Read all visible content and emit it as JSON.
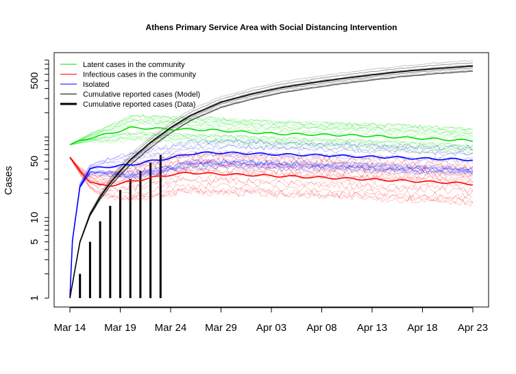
{
  "chart_data": {
    "type": "line",
    "title": "Athens Primary Service Area with Social Distancing Intervention",
    "xlabel": "",
    "ylabel": "Cases",
    "y_scale": "log",
    "ylim": [
      0.8,
      900
    ],
    "xlim": [
      "2020-03-14",
      "2020-04-23"
    ],
    "x_ticks": [
      "Mar 14",
      "Mar 19",
      "Mar 24",
      "Mar 29",
      "Apr 03",
      "Apr 08",
      "Apr 13",
      "Apr 18",
      "Apr 23"
    ],
    "y_ticks": [
      1,
      5,
      10,
      50,
      500
    ],
    "legend_position": "top-left",
    "colors": {
      "latent": "#00e000",
      "infectious": "#ff0000",
      "isolated": "#0000ff",
      "model": "#000000",
      "data": "#000000"
    },
    "series": [
      {
        "name": "Latent cases in the community",
        "x": [
          "2020-03-14",
          "2020-03-16",
          "2020-03-18",
          "2020-03-20",
          "2020-03-22",
          "2020-03-24",
          "2020-03-26",
          "2020-03-28",
          "2020-03-30",
          "2020-04-01",
          "2020-04-03",
          "2020-04-06",
          "2020-04-09",
          "2020-04-12",
          "2020-04-15",
          "2020-04-18",
          "2020-04-21",
          "2020-04-23"
        ],
        "values": [
          80,
          98,
          110,
          130,
          128,
          125,
          124,
          122,
          118,
          114,
          110,
          108,
          106,
          104,
          100,
          96,
          92,
          90
        ]
      },
      {
        "name": "Infectious cases in the community",
        "x": [
          "2020-03-14",
          "2020-03-15",
          "2020-03-16",
          "2020-03-17",
          "2020-03-18",
          "2020-03-20",
          "2020-03-22",
          "2020-03-24",
          "2020-03-26",
          "2020-03-28",
          "2020-03-31",
          "2020-04-03",
          "2020-04-06",
          "2020-04-09",
          "2020-04-12",
          "2020-04-15",
          "2020-04-18",
          "2020-04-21",
          "2020-04-23"
        ],
        "values": [
          55,
          38,
          28,
          25,
          25,
          28,
          31,
          34,
          36,
          35,
          34,
          33,
          32,
          31,
          30,
          29,
          28,
          27,
          26
        ]
      },
      {
        "name": "Isolated",
        "x": [
          "2020-03-14",
          "2020-03-14",
          "2020-03-15",
          "2020-03-16",
          "2020-03-17",
          "2020-03-18",
          "2020-03-20",
          "2020-03-22",
          "2020-03-24",
          "2020-03-26",
          "2020-03-28",
          "2020-03-31",
          "2020-04-03",
          "2020-04-06",
          "2020-04-09",
          "2020-04-12",
          "2020-04-15",
          "2020-04-18",
          "2020-04-21",
          "2020-04-23"
        ],
        "values": [
          1,
          3,
          25,
          40,
          42,
          43,
          45,
          50,
          55,
          62,
          64,
          63,
          61,
          60,
          59,
          57,
          56,
          54,
          53,
          52
        ]
      },
      {
        "name": "Cumulative reported cases (Model)",
        "x": [
          "2020-03-14",
          "2020-03-15",
          "2020-03-16",
          "2020-03-17",
          "2020-03-18",
          "2020-03-19",
          "2020-03-20",
          "2020-03-22",
          "2020-03-24",
          "2020-03-26",
          "2020-03-29",
          "2020-04-01",
          "2020-04-04",
          "2020-04-07",
          "2020-04-10",
          "2020-04-13",
          "2020-04-16",
          "2020-04-19",
          "2020-04-23"
        ],
        "values": [
          1,
          5,
          11,
          18,
          27,
          38,
          52,
          85,
          130,
          185,
          270,
          340,
          410,
          470,
          530,
          590,
          650,
          700,
          760
        ]
      },
      {
        "name": "Cumulative reported cases (Data)",
        "x": [
          "2020-03-15",
          "2020-03-16",
          "2020-03-17",
          "2020-03-18",
          "2020-03-19",
          "2020-03-20",
          "2020-03-21",
          "2020-03-22",
          "2020-03-23"
        ],
        "values": [
          2,
          5,
          9,
          14,
          22,
          30,
          38,
          48,
          60
        ]
      }
    ]
  }
}
